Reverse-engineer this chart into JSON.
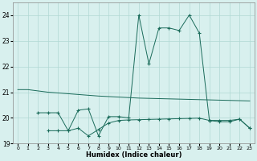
{
  "xlabel": "Humidex (Indice chaleur)",
  "x_values": [
    0,
    1,
    2,
    3,
    4,
    5,
    6,
    7,
    8,
    9,
    10,
    11,
    12,
    13,
    14,
    15,
    16,
    17,
    18,
    19,
    20,
    21,
    22,
    23
  ],
  "line_flat": [
    21.1,
    21.1,
    21.05,
    21.0,
    20.97,
    20.94,
    20.91,
    20.88,
    20.85,
    20.83,
    20.81,
    20.79,
    20.77,
    20.76,
    20.75,
    20.74,
    20.73,
    20.72,
    20.71,
    20.7,
    20.69,
    20.68,
    20.67,
    20.66
  ],
  "line_spike": [
    null,
    null,
    20.2,
    20.2,
    20.2,
    19.5,
    20.3,
    20.35,
    19.3,
    20.05,
    20.05,
    20.0,
    24.0,
    22.1,
    23.5,
    23.5,
    23.4,
    24.0,
    23.3,
    19.9,
    19.85,
    19.85,
    19.95,
    19.6
  ],
  "line_lower": [
    null,
    null,
    null,
    19.5,
    19.5,
    19.5,
    19.6,
    19.3,
    19.55,
    19.8,
    19.9,
    19.92,
    19.93,
    19.94,
    19.95,
    19.96,
    19.97,
    19.98,
    19.99,
    19.9,
    19.9,
    19.9,
    19.95,
    19.6
  ],
  "color": "#1a6b5a",
  "bg_color": "#d8f0ee",
  "grid_color": "#b0d8d4",
  "ylim": [
    19.0,
    24.5
  ],
  "yticks": [
    19,
    20,
    21,
    22,
    23,
    24
  ]
}
